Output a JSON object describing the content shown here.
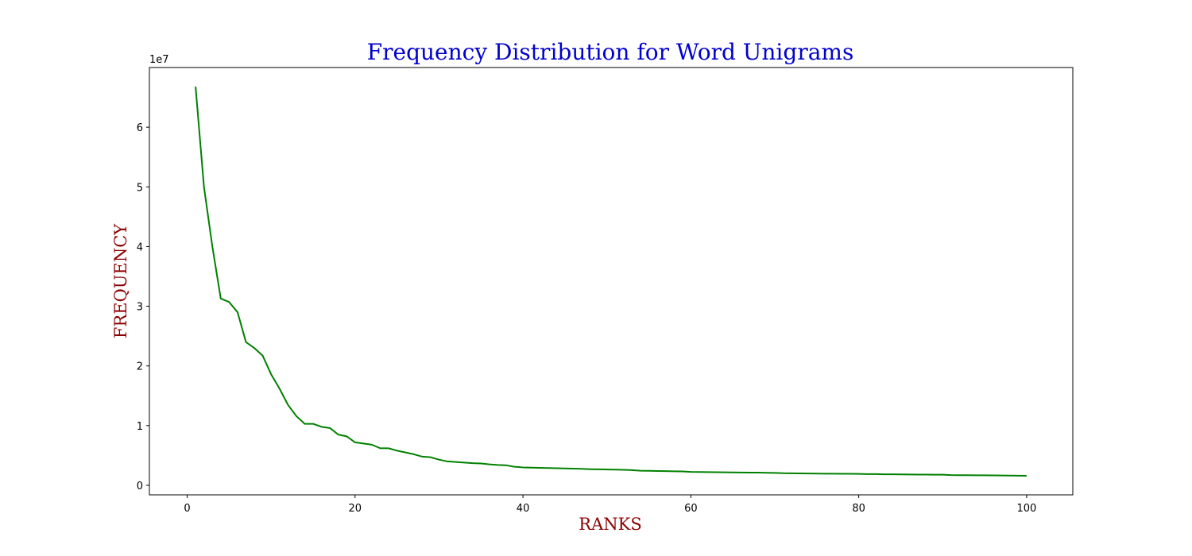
{
  "chart_data": {
    "type": "line",
    "title": "Frequency Distribution for Word Unigrams",
    "xlabel": "RANKS",
    "ylabel": "FREQUENCY",
    "y_offset_label": "1e7",
    "xlim": [
      -4.5,
      105.5
    ],
    "ylim": [
      -1600000,
      70000000
    ],
    "x_ticks": [
      0,
      20,
      40,
      60,
      80,
      100
    ],
    "x_tick_labels": [
      "0",
      "20",
      "40",
      "60",
      "80",
      "100"
    ],
    "y_ticks": [
      0,
      10000000,
      20000000,
      30000000,
      40000000,
      50000000,
      60000000
    ],
    "y_tick_labels": [
      "0",
      "1",
      "2",
      "3",
      "4",
      "5",
      "6"
    ],
    "grid": false,
    "series": [
      {
        "color": "#008000",
        "x": [
          1,
          2,
          3,
          4,
          5,
          6,
          7,
          8,
          9,
          10,
          11,
          12,
          13,
          14,
          15,
          16,
          17,
          18,
          19,
          20,
          21,
          22,
          23,
          24,
          25,
          26,
          27,
          28,
          29,
          30,
          31,
          32,
          33,
          34,
          35,
          36,
          37,
          38,
          39,
          40,
          41,
          42,
          43,
          44,
          45,
          46,
          47,
          48,
          49,
          50,
          51,
          52,
          53,
          54,
          55,
          56,
          57,
          58,
          59,
          60,
          61,
          62,
          63,
          64,
          65,
          66,
          67,
          68,
          69,
          70,
          71,
          72,
          73,
          74,
          75,
          76,
          77,
          78,
          79,
          80,
          81,
          82,
          83,
          84,
          85,
          86,
          87,
          88,
          89,
          90,
          91,
          92,
          93,
          94,
          95,
          96,
          97,
          98,
          99,
          100
        ],
        "y": [
          66800000,
          50000000,
          40000000,
          31300000,
          30700000,
          29000000,
          24000000,
          23000000,
          21700000,
          18600000,
          16200000,
          13500000,
          11600000,
          10300000,
          10300000,
          9800000,
          9600000,
          8500000,
          8200000,
          7200000,
          7000000,
          6800000,
          6200000,
          6200000,
          5800000,
          5500000,
          5200000,
          4800000,
          4700000,
          4300000,
          4000000,
          3900000,
          3800000,
          3700000,
          3650000,
          3500000,
          3400000,
          3350000,
          3100000,
          3000000,
          2950000,
          2930000,
          2900000,
          2850000,
          2820000,
          2800000,
          2750000,
          2700000,
          2680000,
          2650000,
          2620000,
          2600000,
          2550000,
          2450000,
          2420000,
          2400000,
          2380000,
          2350000,
          2320000,
          2250000,
          2230000,
          2210000,
          2190000,
          2170000,
          2160000,
          2150000,
          2130000,
          2120000,
          2100000,
          2080000,
          2020000,
          2010000,
          2000000,
          1980000,
          1960000,
          1950000,
          1940000,
          1930000,
          1920000,
          1910000,
          1880000,
          1870000,
          1850000,
          1840000,
          1820000,
          1810000,
          1800000,
          1790000,
          1780000,
          1770000,
          1710000,
          1700000,
          1690000,
          1680000,
          1670000,
          1660000,
          1640000,
          1620000,
          1610000,
          1600000
        ]
      }
    ],
    "colors": {
      "title": "#0000cd",
      "axis_labels": "#8b0000",
      "line": "#008000",
      "axes": "#000000"
    }
  }
}
